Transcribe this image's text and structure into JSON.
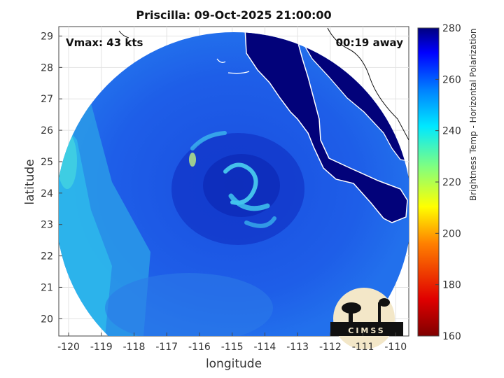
{
  "title": "Priscilla: 09-Oct-2025 21:00:00",
  "vmax_label": "Vmax: 43 kts",
  "time_offset_label": "00:19 away",
  "xlabel": "longitude",
  "ylabel": "latitude",
  "colorbar_label": "Brightness Temp - Horizontal Polarization",
  "logo_text": "CIMSS",
  "x_ticks": [
    -120,
    -119,
    -118,
    -117,
    -116,
    -115,
    -114,
    -113,
    -112,
    -111,
    -110
  ],
  "y_ticks": [
    20,
    21,
    22,
    23,
    24,
    25,
    26,
    27,
    28,
    29
  ],
  "colorbar_ticks": [
    160,
    180,
    200,
    220,
    240,
    260,
    280
  ],
  "colors": {
    "ocean": "#1d5fe8",
    "swath_edge": "#2ec2ee",
    "land": "#02027a",
    "eyewall": "#48c8f0"
  }
}
